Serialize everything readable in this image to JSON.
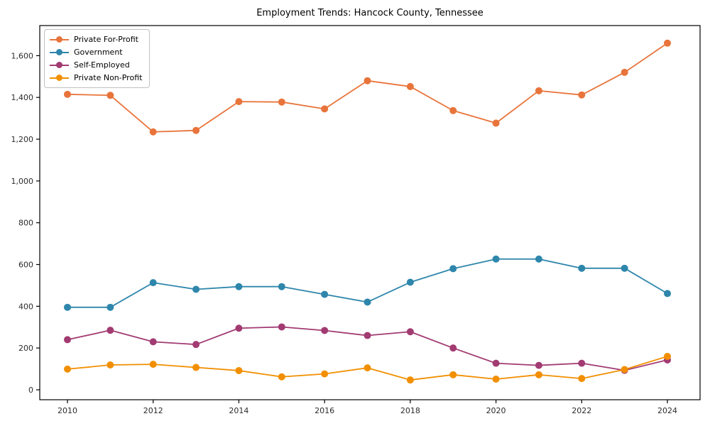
{
  "chart_data": {
    "type": "line",
    "title": "Employment Trends: Hancock County, Tennessee",
    "xlabel": "",
    "ylabel": "",
    "grid": false,
    "legend_position": "upper-left",
    "x": [
      2010,
      2011,
      2012,
      2013,
      2014,
      2015,
      2016,
      2017,
      2018,
      2019,
      2020,
      2021,
      2022,
      2023,
      2024
    ],
    "xtick_labels": [
      "2010",
      "2012",
      "2014",
      "2016",
      "2018",
      "2020",
      "2022",
      "2024"
    ],
    "ytick_values": [
      0,
      200,
      400,
      600,
      800,
      1000,
      1200,
      1400,
      1600
    ],
    "ytick_labels": [
      "0",
      "200",
      "400",
      "600",
      "800",
      "1,000",
      "1,200",
      "1,400",
      "1,600"
    ],
    "ylim": [
      0,
      1790
    ],
    "series": [
      {
        "name": "Private For-Profit",
        "color": "#e8743b",
        "values": [
          1415,
          1410,
          1235,
          1242,
          1380,
          1378,
          1345,
          1480,
          1452,
          1337,
          1277,
          1432,
          1412,
          1520,
          1660
        ]
      },
      {
        "name": "Government",
        "color": "#2e86ab",
        "values": [
          395,
          395,
          513,
          481,
          494,
          494,
          457,
          420,
          515,
          580,
          626,
          626,
          582,
          582,
          461
        ]
      },
      {
        "name": "Self-Employed",
        "color": "#a23b72",
        "values": [
          240,
          285,
          230,
          217,
          295,
          301,
          284,
          260,
          278,
          200,
          127,
          117,
          127,
          93,
          143
        ]
      },
      {
        "name": "Private Non-Profit",
        "color": "#f18f01",
        "values": [
          99,
          119,
          122,
          107,
          92,
          62,
          76,
          105,
          47,
          72,
          51,
          72,
          54,
          97,
          160
        ]
      }
    ]
  },
  "frame": {
    "background": "#ffffff",
    "spine_color": "#000000",
    "tick_color": "#000000",
    "tick_label_color": "#2b2b2b"
  }
}
